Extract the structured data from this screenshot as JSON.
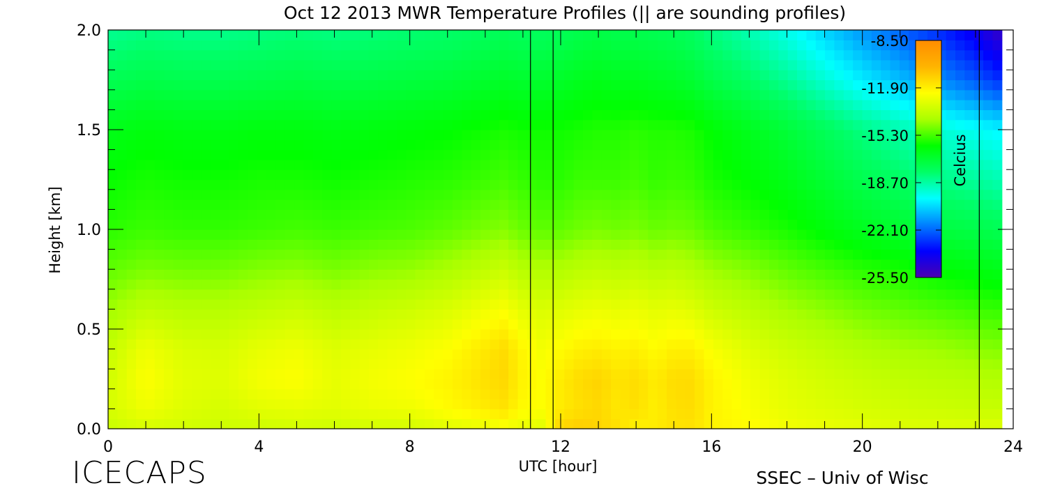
{
  "chart_data": {
    "type": "heatmap",
    "title": "Oct 12 2013 MWR Temperature Profiles (|| are sounding profiles)",
    "xlabel": "UTC [hour]",
    "ylabel": "Height [km]",
    "xlim": [
      0,
      24
    ],
    "ylim": [
      0,
      2.0
    ],
    "x_ticks": [
      "0",
      "4",
      "8",
      "12",
      "16",
      "20",
      "24"
    ],
    "y_ticks": [
      "0.0",
      "0.5",
      "1.0",
      "1.5",
      "2.0"
    ],
    "colorbar": {
      "label": "Celcius",
      "ticks": [
        "-8.50",
        "-11.90",
        "-15.30",
        "-18.70",
        "-22.10",
        "-25.50"
      ],
      "range": [
        -25.5,
        -8.5
      ]
    },
    "sounding_times_utc": [
      11.2,
      11.8,
      23.1
    ],
    "data_coverage_utc": [
      0,
      23.7
    ],
    "x": [
      0,
      1,
      2,
      3,
      4,
      5,
      6,
      7,
      8,
      9,
      10,
      10.5,
      11,
      11.5,
      12,
      12.5,
      13,
      13.5,
      14,
      14.5,
      15,
      15.5,
      16,
      17,
      18,
      19,
      20,
      21,
      22,
      23,
      23.7
    ],
    "y": [
      0.0,
      0.1,
      0.25,
      0.4,
      0.6,
      0.8,
      1.0,
      1.25,
      1.5,
      1.75,
      2.0
    ],
    "z": [
      [
        -13.5,
        -13.2,
        -13.3,
        -13.4,
        -13.4,
        -13.3,
        -13.4,
        -13.3,
        -13.3,
        -13.0,
        -12.8,
        -12.6,
        -12.8,
        -13.0,
        -11.2,
        -11.0,
        -11.2,
        -11.5,
        -12.0,
        -11.8,
        -11.6,
        -11.6,
        -12.0,
        -12.2,
        -12.5,
        -12.7,
        -12.8,
        -13.0,
        -13.0,
        -13.0,
        -13.0
      ],
      [
        -13.2,
        -12.6,
        -13.0,
        -13.2,
        -12.9,
        -12.8,
        -12.9,
        -12.7,
        -12.6,
        -12.2,
        -11.8,
        -11.6,
        -12.2,
        -12.3,
        -11.8,
        -11.5,
        -11.3,
        -11.7,
        -11.5,
        -11.9,
        -11.5,
        -11.4,
        -12.0,
        -12.4,
        -12.8,
        -13.0,
        -13.2,
        -13.3,
        -13.4,
        -13.5,
        -13.5
      ],
      [
        -13.3,
        -12.3,
        -12.9,
        -13.0,
        -12.5,
        -12.3,
        -12.8,
        -12.5,
        -12.3,
        -12.0,
        -11.5,
        -11.3,
        -12.0,
        -12.3,
        -11.8,
        -11.4,
        -11.2,
        -11.6,
        -11.4,
        -11.8,
        -11.4,
        -11.4,
        -12.0,
        -12.6,
        -13.0,
        -13.3,
        -13.5,
        -13.7,
        -13.8,
        -13.9,
        -14.0
      ],
      [
        -13.6,
        -12.6,
        -13.1,
        -13.2,
        -12.8,
        -12.6,
        -13.0,
        -12.8,
        -12.6,
        -12.3,
        -11.7,
        -11.4,
        -12.1,
        -12.5,
        -12.2,
        -11.9,
        -11.8,
        -12.0,
        -11.9,
        -12.2,
        -11.9,
        -11.9,
        -12.4,
        -13.0,
        -13.4,
        -13.7,
        -14.0,
        -14.2,
        -14.3,
        -14.5,
        -14.6
      ],
      [
        -14.3,
        -13.7,
        -13.9,
        -13.9,
        -13.7,
        -13.5,
        -13.8,
        -13.6,
        -13.4,
        -13.1,
        -12.6,
        -12.4,
        -12.9,
        -13.1,
        -13.0,
        -12.8,
        -12.7,
        -12.8,
        -12.7,
        -12.9,
        -12.8,
        -13.0,
        -13.4,
        -13.8,
        -14.2,
        -14.5,
        -14.8,
        -15.0,
        -15.2,
        -15.4,
        -15.5
      ],
      [
        -15.0,
        -14.7,
        -14.8,
        -14.8,
        -14.6,
        -14.5,
        -14.7,
        -14.5,
        -14.4,
        -14.1,
        -13.7,
        -13.5,
        -13.9,
        -14.0,
        -14.0,
        -13.8,
        -13.7,
        -13.8,
        -13.7,
        -13.9,
        -13.8,
        -14.0,
        -14.3,
        -14.6,
        -15.0,
        -15.3,
        -15.6,
        -15.8,
        -16.1,
        -16.3,
        -16.5
      ],
      [
        -15.6,
        -15.4,
        -15.5,
        -15.5,
        -15.4,
        -15.3,
        -15.4,
        -15.3,
        -15.2,
        -15.0,
        -14.7,
        -14.6,
        -14.9,
        -15.0,
        -15.0,
        -14.8,
        -14.7,
        -14.8,
        -14.7,
        -14.9,
        -14.8,
        -14.9,
        -15.2,
        -15.5,
        -15.8,
        -16.2,
        -16.6,
        -16.9,
        -17.2,
        -17.4,
        -17.6
      ],
      [
        -16.0,
        -15.8,
        -15.9,
        -15.9,
        -15.8,
        -15.8,
        -15.9,
        -15.8,
        -15.7,
        -15.6,
        -15.4,
        -15.3,
        -15.5,
        -15.6,
        -15.6,
        -15.4,
        -15.4,
        -15.4,
        -15.3,
        -15.5,
        -15.4,
        -15.5,
        -15.8,
        -16.1,
        -16.5,
        -17.0,
        -17.5,
        -17.9,
        -18.3,
        -18.6,
        -18.9
      ],
      [
        -16.5,
        -16.3,
        -16.4,
        -16.4,
        -16.3,
        -16.3,
        -16.4,
        -16.3,
        -16.2,
        -16.1,
        -15.9,
        -15.8,
        -15.9,
        -15.9,
        -15.9,
        -15.8,
        -15.7,
        -15.7,
        -15.6,
        -15.7,
        -15.7,
        -15.8,
        -16.1,
        -16.6,
        -17.1,
        -17.7,
        -18.3,
        -18.8,
        -19.3,
        -19.7,
        -20.0
      ],
      [
        -17.6,
        -17.4,
        -17.5,
        -17.5,
        -17.4,
        -17.3,
        -17.4,
        -17.3,
        -17.2,
        -17.1,
        -16.9,
        -16.8,
        -16.9,
        -16.9,
        -16.8,
        -16.6,
        -16.5,
        -16.6,
        -16.6,
        -16.7,
        -16.8,
        -17.0,
        -17.4,
        -17.9,
        -18.5,
        -19.3,
        -20.1,
        -20.8,
        -21.5,
        -22.3,
        -23.0
      ],
      [
        -18.5,
        -18.3,
        -18.4,
        -18.4,
        -18.3,
        -18.2,
        -18.3,
        -18.2,
        -18.1,
        -18.0,
        -17.8,
        -17.7,
        -17.8,
        -17.8,
        -17.7,
        -17.5,
        -17.4,
        -17.5,
        -17.5,
        -17.6,
        -17.7,
        -17.9,
        -18.3,
        -18.9,
        -19.6,
        -20.5,
        -21.4,
        -22.2,
        -23.0,
        -24.0,
        -25.0
      ]
    ]
  },
  "footer": {
    "left": "ICECAPS",
    "right": "SSEC – Univ of Wisc"
  },
  "colors": {
    "scale": [
      "#4b00b0",
      "#0000ff",
      "#0080ff",
      "#00ffff",
      "#00ff66",
      "#00ff00",
      "#aaff00",
      "#ffff00",
      "#ffb400",
      "#ff8c00"
    ]
  }
}
